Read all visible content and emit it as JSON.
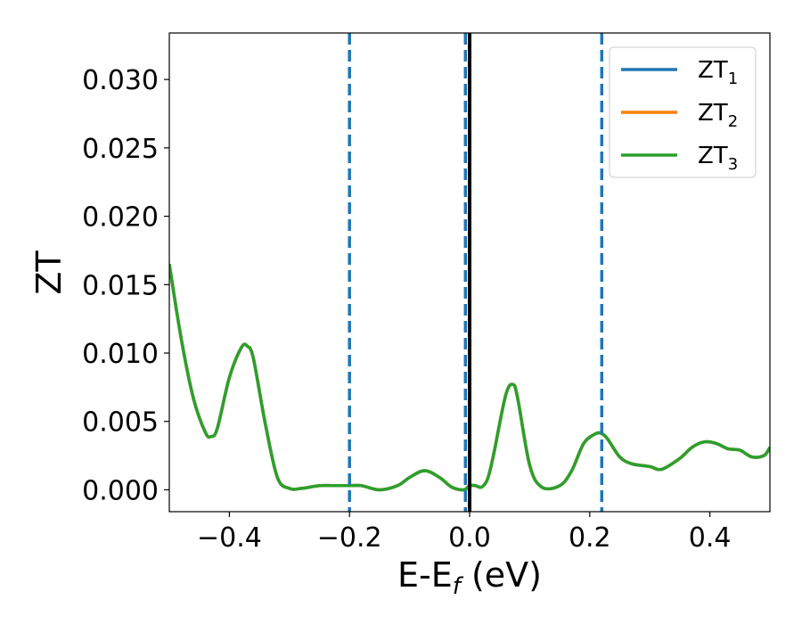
{
  "chart_data": {
    "type": "line",
    "title": "",
    "xlabel": {
      "base": "E-E",
      "sub": "f",
      "suffix": " (eV)"
    },
    "ylabel": "ZT",
    "xlim": [
      -0.5,
      0.5
    ],
    "ylim": [
      -0.0016,
      0.0334
    ],
    "xticks": [
      {
        "v": -0.4,
        "label": "−0.4"
      },
      {
        "v": -0.2,
        "label": "−0.2"
      },
      {
        "v": 0.0,
        "label": "0.0"
      },
      {
        "v": 0.2,
        "label": "0.2"
      },
      {
        "v": 0.4,
        "label": "0.4"
      }
    ],
    "yticks": [
      {
        "v": 0.0,
        "label": "0.000"
      },
      {
        "v": 0.005,
        "label": "0.005"
      },
      {
        "v": 0.01,
        "label": "0.010"
      },
      {
        "v": 0.015,
        "label": "0.015"
      },
      {
        "v": 0.02,
        "label": "0.020"
      },
      {
        "v": 0.025,
        "label": "0.025"
      },
      {
        "v": 0.03,
        "label": "0.030"
      }
    ],
    "grid": false,
    "legend_position": "top-right",
    "vlines": [
      {
        "x": -0.2,
        "style": "dashed",
        "color": "#1f77b4"
      },
      {
        "x": -0.007,
        "style": "dashed",
        "color": "#1f77b4"
      },
      {
        "x": 0.0,
        "style": "solid",
        "color": "#000000"
      },
      {
        "x": 0.22,
        "style": "dashed",
        "color": "#1f77b4"
      }
    ],
    "x": [
      -0.5,
      -0.48,
      -0.46,
      -0.44,
      -0.43,
      -0.42,
      -0.4,
      -0.38,
      -0.37,
      -0.36,
      -0.34,
      -0.32,
      -0.3,
      -0.28,
      -0.25,
      -0.22,
      -0.2,
      -0.18,
      -0.15,
      -0.12,
      -0.1,
      -0.075,
      -0.05,
      -0.03,
      -0.01,
      0.0,
      0.01,
      0.02,
      0.03,
      0.04,
      0.06,
      0.072,
      0.08,
      0.1,
      0.12,
      0.15,
      0.17,
      0.19,
      0.21,
      0.22,
      0.23,
      0.25,
      0.27,
      0.3,
      0.32,
      0.35,
      0.37,
      0.39,
      0.41,
      0.43,
      0.45,
      0.47,
      0.49,
      0.5
    ],
    "series": [
      {
        "name": "ZT",
        "sub": "1",
        "color": "#1f77b4",
        "values": [
          0.0165,
          0.011,
          0.0067,
          0.0042,
          0.0039,
          0.0045,
          0.0082,
          0.0104,
          0.0105,
          0.0096,
          0.0048,
          0.0009,
          0.0001,
          0.0001,
          0.0003,
          0.0003,
          0.0003,
          0.0003,
          0.0,
          0.0003,
          0.0009,
          0.0014,
          0.0009,
          0.0002,
          0.0,
          0.0003,
          0.0003,
          0.0002,
          0.0008,
          0.0026,
          0.0069,
          0.0077,
          0.0067,
          0.0018,
          0.0002,
          0.0003,
          0.0014,
          0.0034,
          0.0041,
          0.0041,
          0.0037,
          0.0024,
          0.0019,
          0.0017,
          0.0015,
          0.0023,
          0.0031,
          0.0035,
          0.0034,
          0.003,
          0.0029,
          0.0024,
          0.0025,
          0.0031
        ]
      },
      {
        "name": "ZT",
        "sub": "2",
        "color": "#ff7f0e",
        "values": [
          0.0165,
          0.011,
          0.0067,
          0.0042,
          0.0039,
          0.0045,
          0.0082,
          0.0104,
          0.0105,
          0.0096,
          0.0048,
          0.0009,
          0.0001,
          0.0001,
          0.0003,
          0.0003,
          0.0003,
          0.0003,
          0.0,
          0.0003,
          0.0009,
          0.0014,
          0.0009,
          0.0002,
          0.0,
          0.0003,
          0.0003,
          0.0002,
          0.0008,
          0.0026,
          0.0069,
          0.0077,
          0.0067,
          0.0018,
          0.0002,
          0.0003,
          0.0014,
          0.0034,
          0.0041,
          0.0041,
          0.0037,
          0.0024,
          0.0019,
          0.0017,
          0.0015,
          0.0023,
          0.0031,
          0.0035,
          0.0034,
          0.003,
          0.0029,
          0.0024,
          0.0025,
          0.0031
        ]
      },
      {
        "name": "ZT",
        "sub": "3",
        "color": "#2ca02c",
        "values": [
          0.0165,
          0.011,
          0.0067,
          0.0042,
          0.0039,
          0.0045,
          0.0082,
          0.0104,
          0.0105,
          0.0096,
          0.0048,
          0.0009,
          0.0001,
          0.0001,
          0.0003,
          0.0003,
          0.0003,
          0.0003,
          0.0,
          0.0003,
          0.0009,
          0.0014,
          0.0009,
          0.0002,
          0.0,
          0.0003,
          0.0003,
          0.0002,
          0.0008,
          0.0026,
          0.0069,
          0.0077,
          0.0067,
          0.0018,
          0.0002,
          0.0003,
          0.0014,
          0.0034,
          0.0041,
          0.0041,
          0.0037,
          0.0024,
          0.0019,
          0.0017,
          0.0015,
          0.0023,
          0.0031,
          0.0035,
          0.0034,
          0.003,
          0.0029,
          0.0024,
          0.0025,
          0.0031
        ]
      }
    ]
  }
}
